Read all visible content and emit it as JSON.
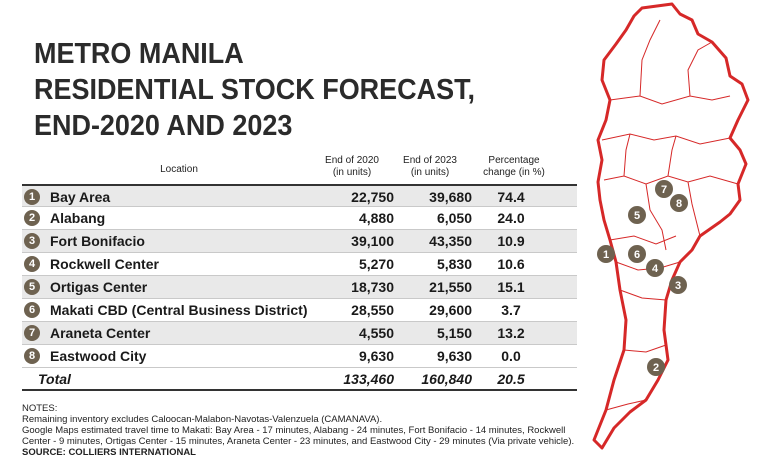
{
  "title": {
    "line1": "METRO MANILA",
    "line2": "RESIDENTIAL STOCK FORECAST,",
    "line3": "END-2020 AND 2023"
  },
  "headers": {
    "location": "Location",
    "end2020_line1": "End of 2020",
    "end2020_line2": "(in units)",
    "end2023_line1": "End of 2023",
    "end2023_line2": "(in units)",
    "pct_line1": "Percentage",
    "pct_line2": "change (in %)"
  },
  "chart_data": {
    "type": "table",
    "title": "METRO MANILA RESIDENTIAL STOCK FORECAST, END-2020 AND 2023",
    "columns": [
      "Location",
      "End of 2020 (in units)",
      "End of 2023 (in units)",
      "Percentage change (in %)"
    ],
    "rows": [
      {
        "num": "1",
        "location": "Bay Area",
        "end2020": "22,750",
        "end2023": "39,680",
        "pct": "74.4"
      },
      {
        "num": "2",
        "location": "Alabang",
        "end2020": "4,880",
        "end2023": "6,050",
        "pct": "24.0"
      },
      {
        "num": "3",
        "location": "Fort Bonifacio",
        "end2020": "39,100",
        "end2023": "43,350",
        "pct": "10.9"
      },
      {
        "num": "4",
        "location": "Rockwell Center",
        "end2020": "5,270",
        "end2023": "5,830",
        "pct": "10.6"
      },
      {
        "num": "5",
        "location": "Ortigas Center",
        "end2020": "18,730",
        "end2023": "21,550",
        "pct": "15.1"
      },
      {
        "num": "6",
        "location": "Makati CBD (Central Business District)",
        "end2020": "28,550",
        "end2023": "29,600",
        "pct": "3.7"
      },
      {
        "num": "7",
        "location": "Araneta Center",
        "end2020": "4,550",
        "end2023": "5,150",
        "pct": "13.2"
      },
      {
        "num": "8",
        "location": "Eastwood City",
        "end2020": "9,630",
        "end2023": "9,630",
        "pct": "0.0"
      }
    ],
    "total": {
      "location": "Total",
      "end2020": "133,460",
      "end2023": "160,840",
      "pct": "20.5"
    }
  },
  "notes": {
    "label": "NOTES:",
    "line1": "Remaining inventory excludes Caloocan-Malabon-Navotas-Valenzuela (CAMANAVA).",
    "line2": "Google Maps estimated travel time to Makati: Bay Area - 17 minutes, Alabang - 24 minutes, Fort Bonifacio - 14 minutes, Rockwell",
    "line3": "Center - 9 minutes, Ortigas Center - 15 minutes, Araneta Center - 23 minutes, and Eastwood City - 29 minutes (Via private vehicle).",
    "source": "SOURCE: COLLIERS INTERNATIONAL"
  },
  "map": {
    "markers": [
      "1",
      "2",
      "3",
      "4",
      "5",
      "6",
      "7",
      "8"
    ],
    "outline_color": "#d62828",
    "badge_color": "#6e6250"
  }
}
